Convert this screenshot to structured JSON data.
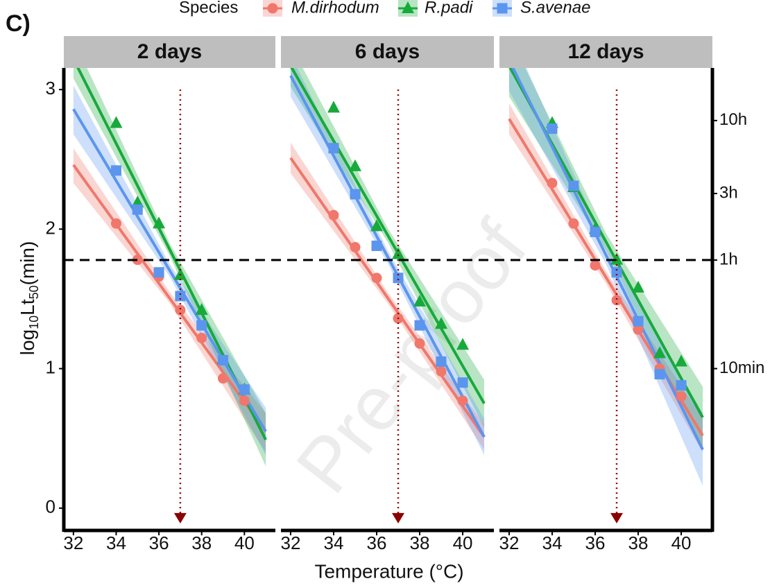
{
  "chart_data": {
    "type": "facet-scatter-fit",
    "panel_label": "C)",
    "legend_title": "Species",
    "xlabel": "Temperature (°C)",
    "ylabel": {
      "prefix": "log",
      "sub1": "10",
      "mid": "Lt",
      "sub2": "50",
      "suffix": "(min)"
    },
    "watermark": "Pre-proof",
    "species": [
      {
        "name": "M.dirhodum",
        "color": "#f0776b",
        "marker": "circle"
      },
      {
        "name": "R.padi",
        "color": "#17aa3b",
        "marker": "triangle"
      },
      {
        "name": "S.avenae",
        "color": "#5b95ee",
        "marker": "square"
      }
    ],
    "x": [
      34,
      35,
      36,
      37,
      38,
      39,
      40
    ],
    "fit_x": [
      32,
      36.5,
      41
    ],
    "facets": [
      {
        "title": "2 days",
        "series": [
          {
            "values": [
              2.04,
              1.78,
              1.66,
              1.42,
              1.22,
              0.93,
              0.77
            ],
            "fit": [
              2.46,
              1.505,
              0.55
            ],
            "band_lower": [
              2.33,
              1.47,
              0.4
            ],
            "band_upper": [
              2.58,
              1.55,
              0.68
            ]
          },
          {
            "values": [
              2.76,
              2.19,
              2.04,
              1.67,
              1.42,
              1.07,
              0.85
            ],
            "fit": [
              3.22,
              1.855,
              0.49
            ],
            "band_lower": [
              3.08,
              1.81,
              0.3
            ],
            "band_upper": [
              3.36,
              1.9,
              0.68
            ]
          },
          {
            "values": [
              2.42,
              2.14,
              1.69,
              1.52,
              1.31,
              1.06,
              0.85
            ],
            "fit": [
              2.86,
              1.705,
              0.55
            ],
            "band_lower": [
              2.68,
              1.66,
              0.38
            ],
            "band_upper": [
              3.03,
              1.75,
              0.72
            ]
          }
        ]
      },
      {
        "title": "6 days",
        "series": [
          {
            "values": [
              2.1,
              1.87,
              1.65,
              1.36,
              1.18,
              0.98,
              0.77
            ],
            "fit": [
              2.51,
              1.51,
              0.51
            ],
            "band_lower": [
              2.4,
              1.47,
              0.42
            ],
            "band_upper": [
              2.62,
              1.55,
              0.6
            ]
          },
          {
            "values": [
              2.87,
              2.45,
              2.02,
              1.82,
              1.48,
              1.32,
              1.17
            ],
            "fit": [
              3.17,
              1.96,
              0.75
            ],
            "band_lower": [
              3.02,
              1.91,
              0.58
            ],
            "band_upper": [
              3.32,
              2.01,
              0.92
            ]
          },
          {
            "values": [
              2.58,
              2.25,
              1.88,
              1.65,
              1.31,
              1.05,
              0.9
            ],
            "fit": [
              3.1,
              1.805,
              0.51
            ],
            "band_lower": [
              2.95,
              1.76,
              0.38
            ],
            "band_upper": [
              3.25,
              1.85,
              0.64
            ]
          }
        ]
      },
      {
        "title": "12 days",
        "series": [
          {
            "values": [
              2.33,
              2.04,
              1.74,
              1.49,
              1.28,
              1.0,
              0.8
            ],
            "fit": [
              2.79,
              1.655,
              0.52
            ],
            "band_lower": [
              2.68,
              1.61,
              0.4
            ],
            "band_upper": [
              2.9,
              1.7,
              0.64
            ]
          },
          {
            "values": [
              2.76,
              2.3,
              2.0,
              1.78,
              1.58,
              1.11,
              1.05
            ],
            "fit": [
              3.17,
              1.91,
              0.65
            ],
            "band_lower": [
              2.95,
              1.85,
              0.43
            ],
            "band_upper": [
              3.39,
              1.97,
              0.87
            ]
          },
          {
            "values": [
              2.72,
              2.31,
              1.98,
              1.69,
              1.34,
              0.96,
              0.88
            ],
            "fit": [
              3.21,
              1.815,
              0.42
            ],
            "band_lower": [
              2.99,
              1.75,
              0.16
            ],
            "band_upper": [
              3.43,
              1.88,
              0.68
            ]
          }
        ]
      }
    ],
    "xlim": [
      31.55,
      41.45
    ],
    "xticks": [
      32,
      34,
      36,
      38,
      40
    ],
    "ylim": [
      -0.16,
      3.155
    ],
    "yticks": [
      0,
      1,
      2,
      3
    ],
    "y2lim": [
      -0.16,
      3.155
    ],
    "y2ticks": [
      {
        "value": 2.778,
        "label": "10h"
      },
      {
        "value": 2.255,
        "label": "3h"
      },
      {
        "value": 1.778,
        "label": "1h"
      },
      {
        "value": 1,
        "label": "10min"
      }
    ],
    "hline": 1.778,
    "vline": 37,
    "vline_y": [
      3.0,
      -0.07
    ]
  }
}
